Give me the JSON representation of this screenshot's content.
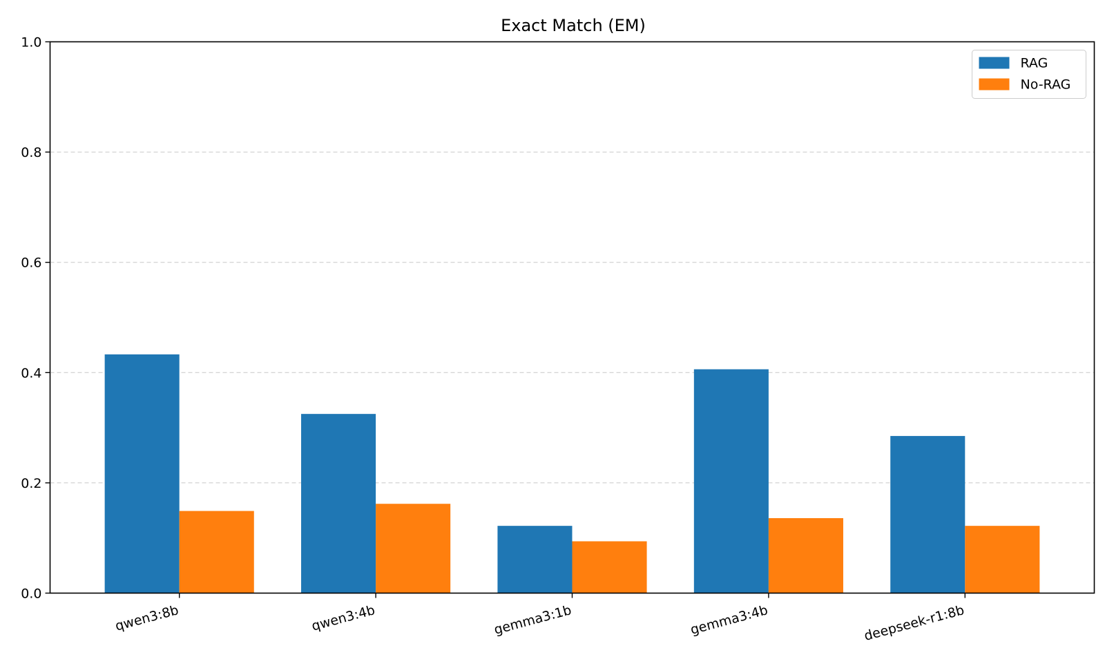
{
  "chart_data": {
    "type": "bar",
    "title": "Exact Match (EM)",
    "xlabel": "",
    "ylabel": "",
    "categories": [
      "qwen3:8b",
      "qwen3:4b",
      "gemma3:1b",
      "gemma3:4b",
      "deepseek-r1:8b"
    ],
    "series": [
      {
        "name": "RAG",
        "color": "#1f77b4",
        "values": [
          0.433,
          0.325,
          0.122,
          0.406,
          0.285
        ]
      },
      {
        "name": "No-RAG",
        "color": "#ff7f0e",
        "values": [
          0.149,
          0.162,
          0.094,
          0.136,
          0.122
        ]
      }
    ],
    "ylim": [
      0,
      1.0
    ],
    "yticks": [
      "0.0",
      "0.2",
      "0.4",
      "0.6",
      "0.8",
      "1.0"
    ],
    "grid": "y-dashed",
    "legend_position": "top-right"
  }
}
